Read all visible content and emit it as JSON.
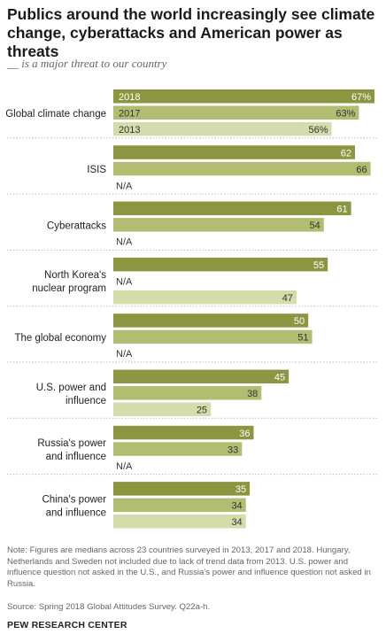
{
  "header": {
    "title": "Publics around the world increasingly see climate change, cyberattacks and American power as threats",
    "subtitle": "__ is a major threat to our country"
  },
  "chart_data": {
    "type": "bar",
    "orientation": "horizontal",
    "title": "Publics around the world increasingly see climate change, cyberattacks and American power as threats",
    "subtitle": "__ is a major threat to our country",
    "series": [
      {
        "name": "2018",
        "color": "#8c9641"
      },
      {
        "name": "2017",
        "color": "#b2bd72"
      },
      {
        "name": "2013",
        "color": "#d4dcab"
      }
    ],
    "na_label": "N/A",
    "xlim": [
      0,
      67
    ],
    "groups": [
      {
        "label": [
          "Global climate change"
        ],
        "values": [
          {
            "year": "2018",
            "value": 67,
            "label": "67%"
          },
          {
            "year": "2017",
            "value": 63,
            "label": "63%"
          },
          {
            "year": "2013",
            "value": 56,
            "label": "56%"
          }
        ]
      },
      {
        "label": [
          "ISIS"
        ],
        "values": [
          {
            "year": "2018",
            "value": 62,
            "label": "62"
          },
          {
            "year": "2017",
            "value": 66,
            "label": "66"
          },
          {
            "year": "2013",
            "value": null,
            "label": "N/A"
          }
        ]
      },
      {
        "label": [
          "Cyberattacks"
        ],
        "values": [
          {
            "year": "2018",
            "value": 61,
            "label": "61"
          },
          {
            "year": "2017",
            "value": 54,
            "label": "54"
          },
          {
            "year": "2013",
            "value": null,
            "label": "N/A"
          }
        ]
      },
      {
        "label": [
          "North Korea's",
          "nuclear program"
        ],
        "values": [
          {
            "year": "2018",
            "value": 55,
            "label": "55"
          },
          {
            "year": "2017",
            "value": null,
            "label": "N/A"
          },
          {
            "year": "2013",
            "value": 47,
            "label": "47"
          }
        ]
      },
      {
        "label": [
          "The global economy"
        ],
        "values": [
          {
            "year": "2018",
            "value": 50,
            "label": "50"
          },
          {
            "year": "2017",
            "value": 51,
            "label": "51"
          },
          {
            "year": "2013",
            "value": null,
            "label": "N/A"
          }
        ]
      },
      {
        "label": [
          "U.S. power and",
          "influence"
        ],
        "values": [
          {
            "year": "2018",
            "value": 45,
            "label": "45"
          },
          {
            "year": "2017",
            "value": 38,
            "label": "38"
          },
          {
            "year": "2013",
            "value": 25,
            "label": "25"
          }
        ]
      },
      {
        "label": [
          "Russia's power",
          "and influence"
        ],
        "values": [
          {
            "year": "2018",
            "value": 36,
            "label": "36"
          },
          {
            "year": "2017",
            "value": 33,
            "label": "33"
          },
          {
            "year": "2013",
            "value": null,
            "label": "N/A"
          }
        ]
      },
      {
        "label": [
          "China's power",
          "and influence"
        ],
        "values": [
          {
            "year": "2018",
            "value": 35,
            "label": "35"
          },
          {
            "year": "2017",
            "value": 34,
            "label": "34"
          },
          {
            "year": "2013",
            "value": 34,
            "label": "34"
          }
        ]
      }
    ]
  },
  "footer": {
    "note": "Note: Figures are medians across 23 countries surveyed in 2013, 2017 and 2018. Hungary, Netherlands and Sweden not included due to lack of trend data from 2013. U.S. power and influence question not asked in the U.S., and Russia's power and influence question not asked in Russia.",
    "source": "Source: Spring 2018 Global Attitudes Survey. Q22a-h.",
    "brand": "PEW RESEARCH CENTER"
  }
}
